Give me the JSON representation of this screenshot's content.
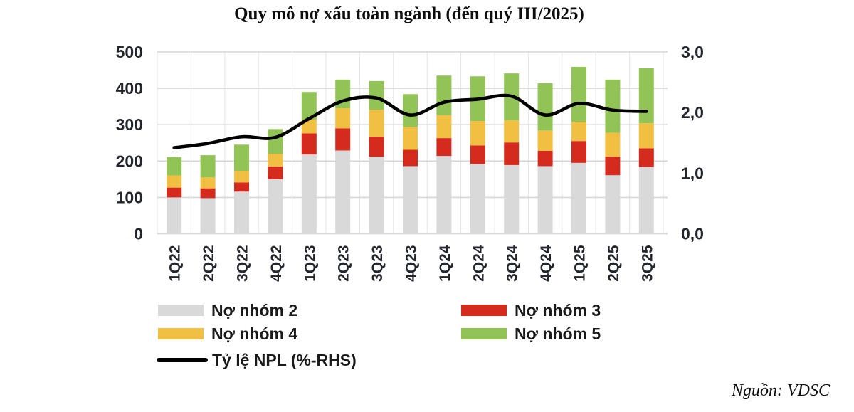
{
  "title": "Quy mô nợ xấu toàn ngành (đến quý III/2025)",
  "source": "Nguồn: VDSC",
  "colors": {
    "grid_horizontal": "#d6d6d6",
    "grid_vertical": "#e3e3e3",
    "axis_text": "#24262e",
    "background": "#ffffff"
  },
  "chart_data": {
    "type": "bar",
    "subtype": "stacked-bars-with-line-overlay",
    "title": "Quy mô nợ xấu toàn ngành (đến quý III/2025)",
    "categories": [
      "1Q22",
      "2Q22",
      "3Q22",
      "4Q22",
      "1Q23",
      "2Q23",
      "3Q23",
      "4Q23",
      "1Q24",
      "2Q24",
      "3Q24",
      "4Q24",
      "1Q25",
      "2Q25",
      "3Q25"
    ],
    "series": [
      {
        "name": "Nợ nhóm 2",
        "type": "bar",
        "color": "#d9d9d9",
        "axis": "left",
        "values": [
          100,
          98,
          116,
          150,
          218,
          229,
          212,
          186,
          214,
          192,
          189,
          186,
          195,
          161,
          184
        ]
      },
      {
        "name": "Nợ nhóm 3",
        "type": "bar",
        "color": "#d52b1e",
        "axis": "left",
        "values": [
          27,
          27,
          25,
          35,
          58,
          61,
          55,
          45,
          49,
          51,
          62,
          42,
          60,
          51,
          51
        ]
      },
      {
        "name": "Nợ nhóm 4",
        "type": "bar",
        "color": "#f1bf42",
        "axis": "left",
        "values": [
          33,
          30,
          32,
          35,
          38,
          55,
          74,
          63,
          63,
          67,
          61,
          56,
          53,
          66,
          69
        ]
      },
      {
        "name": "Nợ nhóm 5",
        "type": "bar",
        "color": "#92c356",
        "axis": "left",
        "values": [
          51,
          61,
          72,
          68,
          76,
          79,
          79,
          90,
          109,
          123,
          129,
          130,
          151,
          146,
          151
        ]
      },
      {
        "name": "Tỷ lệ NPL (%-RHS)",
        "type": "line",
        "color": "#000000",
        "axis": "right",
        "values": [
          1.42,
          1.49,
          1.6,
          1.59,
          1.9,
          2.19,
          2.24,
          1.96,
          2.17,
          2.22,
          2.27,
          1.96,
          2.15,
          2.04,
          2.02
        ]
      }
    ],
    "bar_totals": [
      211,
      216,
      245,
      288,
      390,
      424,
      420,
      384,
      435,
      433,
      441,
      414,
      459,
      424,
      455
    ],
    "left_axis": {
      "min": 0,
      "max": 500,
      "tick_values": [
        0,
        100,
        200,
        300,
        400,
        500
      ],
      "tick_labels": [
        "0",
        "100",
        "200",
        "300",
        "400",
        "500"
      ]
    },
    "right_axis": {
      "min": 0,
      "max": 3,
      "tick_values": [
        0,
        1,
        2,
        3
      ],
      "tick_labels": [
        "0,0",
        "1,0",
        "2,0",
        "3,0"
      ]
    },
    "grid": "horizontal-and-vertical",
    "legend_position": "bottom"
  }
}
